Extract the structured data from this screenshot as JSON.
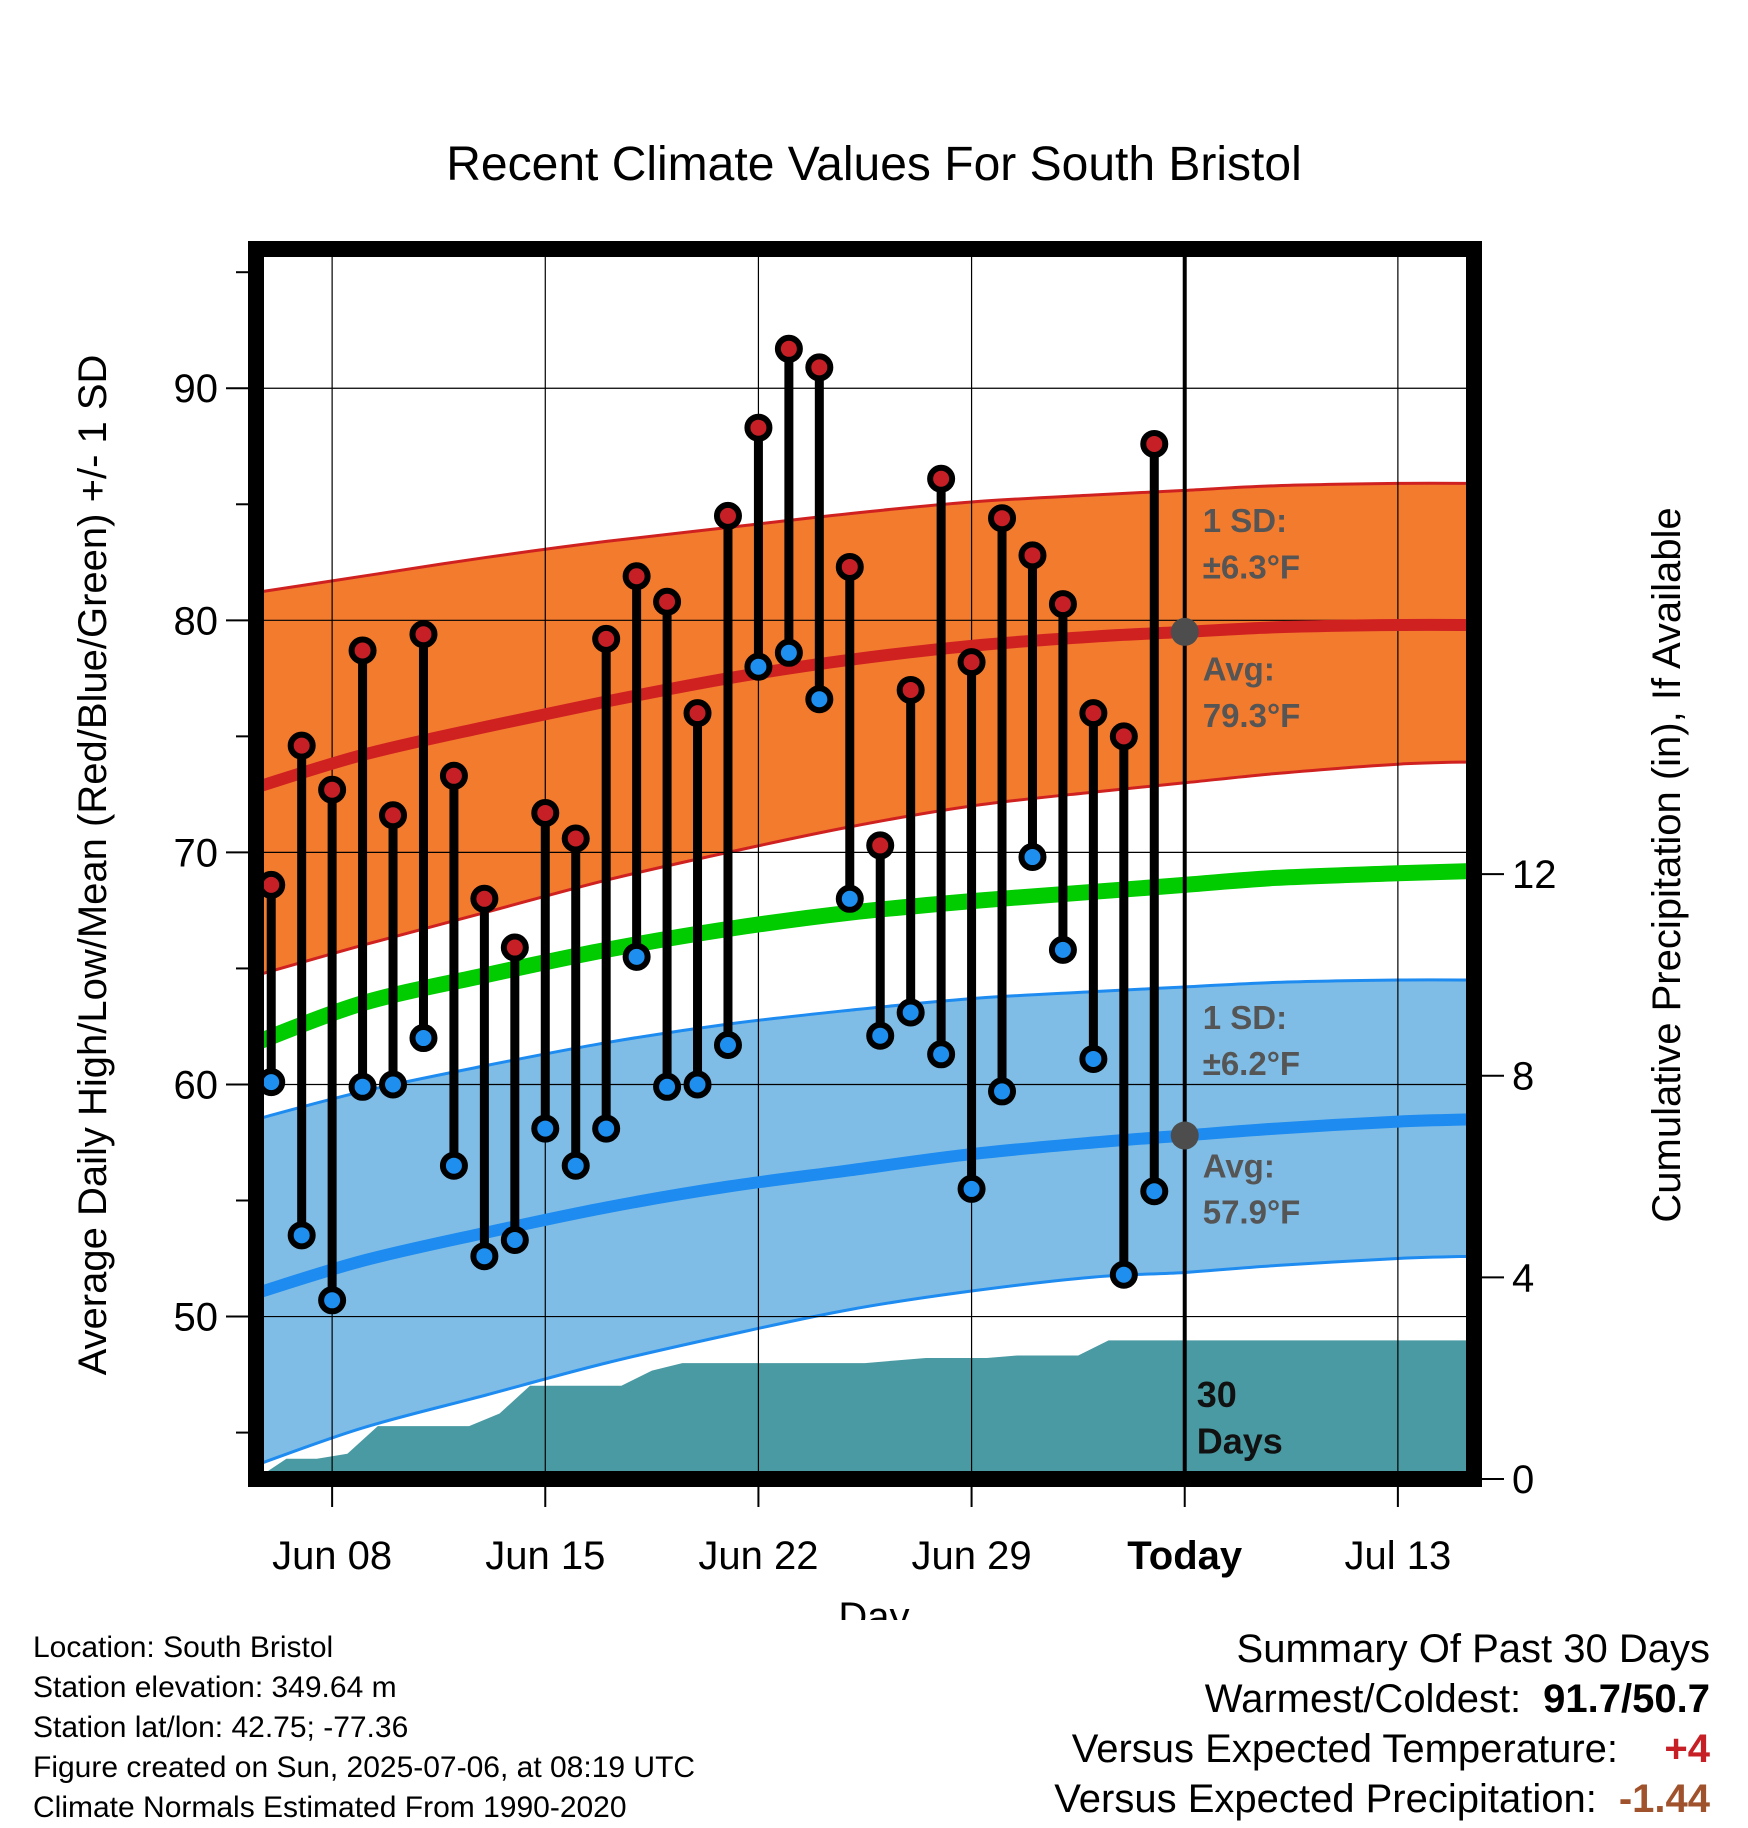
{
  "chart_data": {
    "type": "line",
    "title": "Recent Climate Values For South Bristol",
    "xlabel": "Day",
    "ylabel": "Average Daily High/Low/Mean (Red/Blue/Green) +/- 1 SD",
    "ylabel_right": "Cumulative Precipitation (in), If Available",
    "x_ticks": [
      {
        "day": 3,
        "label": "Jun 08"
      },
      {
        "day": 10,
        "label": "Jun 15"
      },
      {
        "day": 17,
        "label": "Jun 22"
      },
      {
        "day": 24,
        "label": "Jun 29"
      },
      {
        "day": 31,
        "label": "Today"
      },
      {
        "day": 38,
        "label": "Jul 13"
      }
    ],
    "xlim": [
      0.5,
      40.5
    ],
    "ylim": [
      43,
      96
    ],
    "y_ticks": [
      50,
      60,
      70,
      80,
      90
    ],
    "y2lim": [
      0,
      24.4
    ],
    "y2_ticks": [
      0,
      4,
      8,
      12
    ],
    "today_day": 31,
    "observed": {
      "days": [
        1,
        2,
        3,
        4,
        5,
        6,
        7,
        8,
        9,
        10,
        11,
        12,
        13,
        14,
        15,
        16,
        17,
        18,
        19,
        20,
        21,
        22,
        23,
        24,
        25,
        26,
        27,
        28,
        29,
        30
      ],
      "highs": [
        68.6,
        74.6,
        72.7,
        78.7,
        71.6,
        79.4,
        73.3,
        68.0,
        65.9,
        71.7,
        70.6,
        79.2,
        81.9,
        80.8,
        76.0,
        84.5,
        88.3,
        91.7,
        90.9,
        82.3,
        70.3,
        77.0,
        86.1,
        78.2,
        84.4,
        82.8,
        80.7,
        76.0,
        75.0,
        87.6
      ],
      "lows": [
        60.1,
        53.5,
        50.7,
        59.9,
        60.0,
        62.0,
        56.5,
        52.6,
        53.3,
        58.1,
        56.5,
        58.1,
        65.5,
        59.9,
        60.0,
        61.7,
        78.0,
        78.6,
        76.6,
        68.0,
        62.1,
        63.1,
        61.3,
        55.5,
        59.7,
        69.8,
        65.8,
        61.1,
        51.8,
        55.4
      ]
    },
    "normals": {
      "days": [
        0.5,
        4,
        8,
        12,
        16,
        20,
        24,
        28,
        31,
        34,
        38,
        40.5
      ],
      "high_avg": [
        72.8,
        74.2,
        75.4,
        76.5,
        77.5,
        78.3,
        78.9,
        79.3,
        79.5,
        79.7,
        79.8,
        79.8
      ],
      "high_upper": [
        81.2,
        81.9,
        82.7,
        83.4,
        84.0,
        84.6,
        85.1,
        85.4,
        85.6,
        85.8,
        85.9,
        85.9
      ],
      "high_lower": [
        64.7,
        66.0,
        67.4,
        68.8,
        70.0,
        71.1,
        72.0,
        72.6,
        73.0,
        73.4,
        73.8,
        73.9
      ],
      "mean_avg": [
        61.8,
        63.5,
        64.7,
        65.8,
        66.7,
        67.4,
        67.9,
        68.3,
        68.6,
        68.9,
        69.1,
        69.2
      ],
      "low_avg": [
        51.0,
        52.4,
        53.6,
        54.7,
        55.6,
        56.3,
        57.0,
        57.5,
        57.8,
        58.1,
        58.4,
        58.5
      ],
      "low_upper": [
        58.5,
        59.7,
        60.8,
        61.8,
        62.6,
        63.2,
        63.7,
        64.0,
        64.2,
        64.4,
        64.5,
        64.5
      ],
      "low_lower": [
        43.6,
        45.2,
        46.6,
        48.0,
        49.2,
        50.3,
        51.1,
        51.7,
        51.9,
        52.2,
        52.5,
        52.6
      ]
    },
    "precip": {
      "days": [
        0.5,
        1.5,
        2.5,
        3.5,
        4.5,
        5.5,
        6.5,
        7.5,
        8.5,
        9.5,
        10.5,
        11.5,
        12.5,
        13.5,
        14.5,
        15.5,
        16.5,
        17.5,
        18.5,
        19.5,
        20.5,
        21.5,
        22.5,
        23.5,
        24.5,
        25.5,
        26.5,
        27.5,
        28.5,
        29.5,
        30.5,
        40.5
      ],
      "cumulative": [
        0.0,
        0.4,
        0.4,
        0.5,
        1.05,
        1.05,
        1.05,
        1.05,
        1.3,
        1.85,
        1.85,
        1.85,
        1.85,
        2.15,
        2.3,
        2.3,
        2.3,
        2.3,
        2.3,
        2.3,
        2.3,
        2.35,
        2.4,
        2.4,
        2.4,
        2.45,
        2.45,
        2.45,
        2.75,
        2.75,
        2.75,
        2.75
      ]
    },
    "annotations": {
      "high_sd_l1": "1 SD:",
      "high_sd_l2": "±6.3°F",
      "high_avg_l1": "Avg:",
      "high_avg_l2": "79.3°F",
      "low_sd_l1": "1 SD:",
      "low_sd_l2": "±6.2°F",
      "low_avg_l1": "Avg:",
      "low_avg_l2": "57.9°F",
      "period_l1": "30",
      "period_l2": "Days"
    },
    "colors": {
      "high_band": "#f37b2e",
      "high_line": "#d02121",
      "high_dot": "#c62026",
      "low_band": "#7fbde6",
      "low_line": "#1e8bf0",
      "low_dot": "#1e8fee",
      "mean_line": "#00cc00",
      "precip": "#4a9aa3",
      "today_marker": "#4d4d4d"
    },
    "grid": true
  },
  "info": {
    "location": "Location: South Bristol",
    "elevation": "Station elevation: 349.64 m",
    "latlon": "Station lat/lon: 42.75; -77.36",
    "created": "Figure created on Sun, 2025-07-06, at 08:19 UTC",
    "normals_note": "Climate Normals Estimated From 1990-2020"
  },
  "summary": {
    "title": "Summary Of Past 30 Days",
    "warm_cold_label": "Warmest/Coldest:",
    "warm_cold_value": "91.7/50.7",
    "temp_label": "Versus Expected Temperature:",
    "temp_value": "+4",
    "temp_color": "#c62026",
    "precip_label": "Versus Expected Precipitation:",
    "precip_value": "-1.44",
    "precip_color": "#a0522d"
  }
}
